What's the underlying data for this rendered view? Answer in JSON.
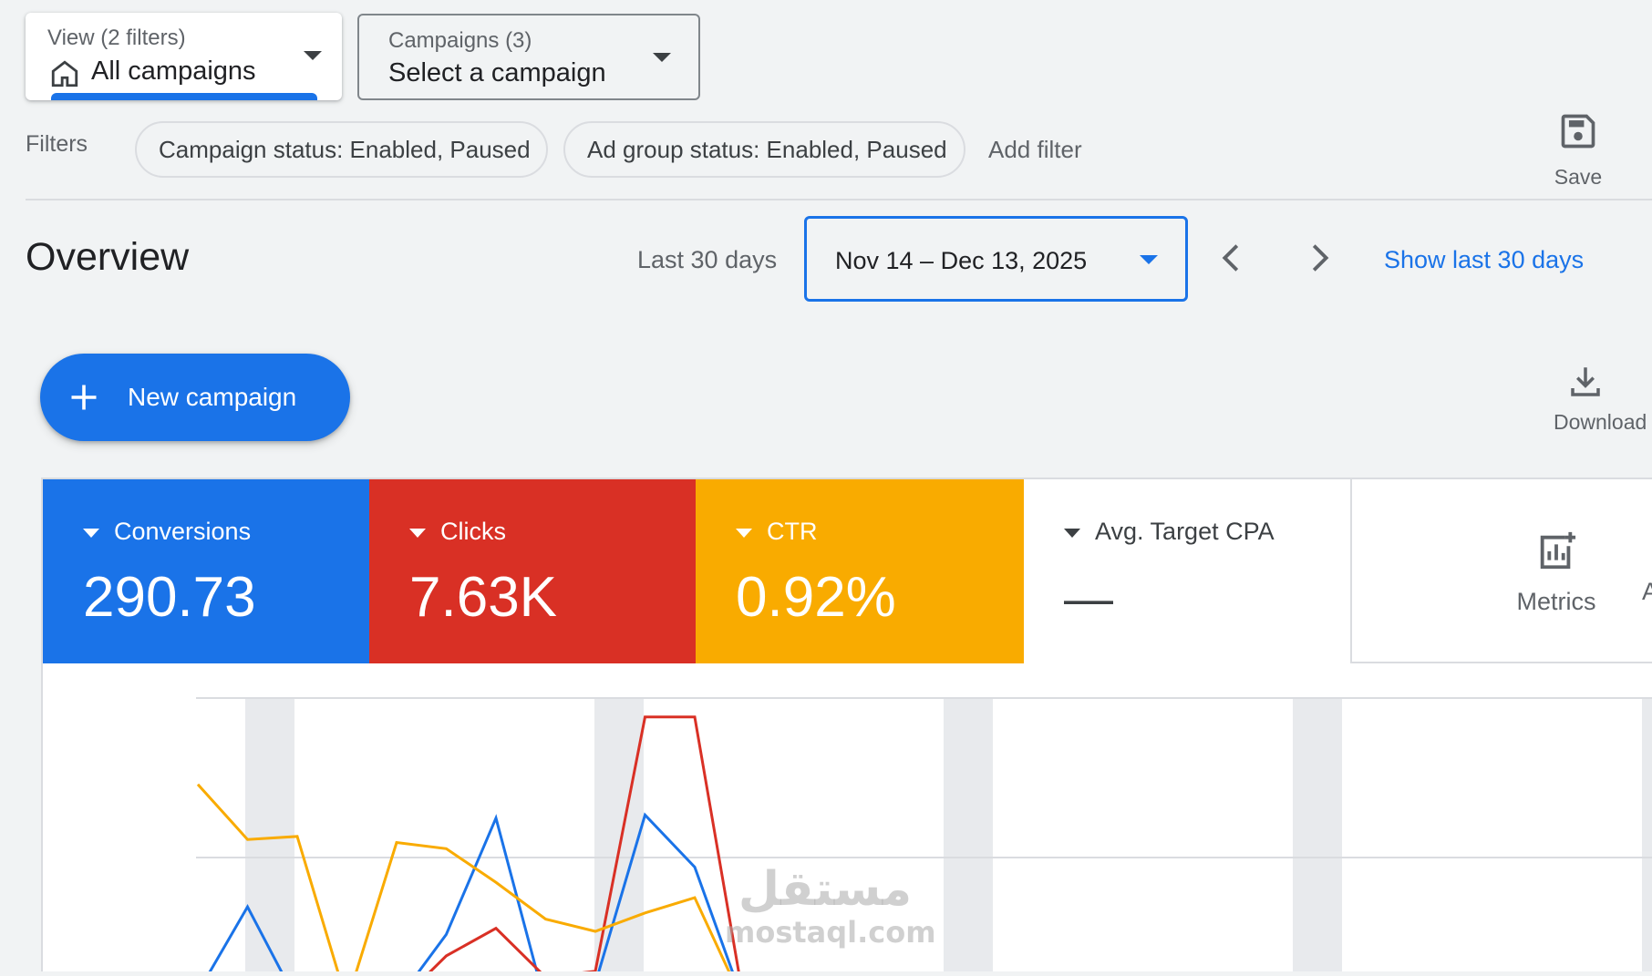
{
  "view_selector": {
    "caption": "View (2 filters)",
    "value": "All campaigns"
  },
  "campaign_selector": {
    "caption": "Campaigns (3)",
    "value": "Select a campaign"
  },
  "filters": {
    "label": "Filters",
    "chips": [
      "Campaign status: Enabled, Paused",
      "Ad group status: Enabled, Paused"
    ],
    "add_filter": "Add filter",
    "save_label": "Save"
  },
  "overview": {
    "title": "Overview",
    "range_label": "Last 30 days",
    "date_range": "Nov 14 – Dec 13, 2025",
    "show_last": "Show last 30 days"
  },
  "actions": {
    "new_campaign": "New campaign",
    "download": "Download"
  },
  "scorecards": [
    {
      "name": "Conversions",
      "value": "290.73",
      "color": "#1a73e8"
    },
    {
      "name": "Clicks",
      "value": "7.63K",
      "color": "#d93025"
    },
    {
      "name": "CTR",
      "value": "0.92%",
      "color": "#f9ab00"
    },
    {
      "name": "Avg. Target CPA",
      "value": "—",
      "color": "#ffffff"
    }
  ],
  "metrics_label": "Metrics",
  "clipped_label": "A",
  "watermark": {
    "arabic": "مستقل",
    "latin": "mostaql.com"
  },
  "chart_data": {
    "type": "line",
    "x": [
      1,
      2,
      3,
      4,
      5,
      6,
      7,
      8,
      9,
      10,
      11,
      12
    ],
    "series": [
      {
        "values": [
          0.05,
          0.33,
          0.02,
          0.02,
          0.02,
          0.24,
          0.62,
          0.01,
          0.08,
          0.63,
          0.46,
          0.01
        ],
        "color": "#1a73e8"
      },
      {
        "values": [
          0.02,
          0.03,
          0.01,
          0.01,
          0.01,
          0.17,
          0.26,
          0.1,
          0.12,
          0.95,
          0.95,
          0.01
        ],
        "color": "#d93025"
      },
      {
        "values": [
          0.73,
          0.55,
          0.56,
          0.02,
          0.54,
          0.52,
          0.41,
          0.29,
          0.25,
          0.31,
          0.36,
          0.01
        ],
        "color": "#f9ab00"
      }
    ]
  }
}
